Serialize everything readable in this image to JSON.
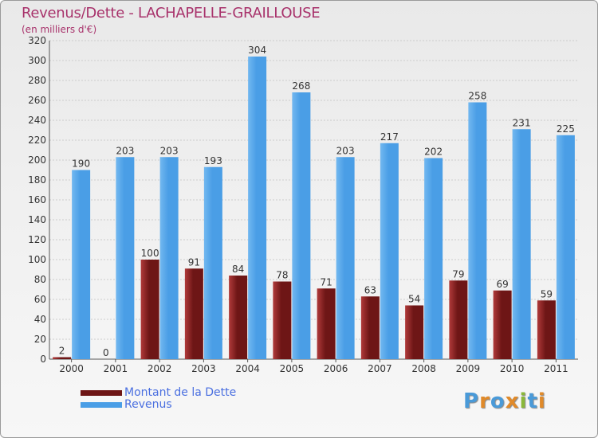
{
  "title": "Revenus/Dette - LACHAPELLE-GRAILLOUSE",
  "subtitle": "(en milliers d'€)",
  "logo": {
    "text": "Proxiti",
    "letters": [
      {
        "char": "P",
        "color": "#4a9ad8"
      },
      {
        "char": "r",
        "color": "#e08a2a"
      },
      {
        "char": "o",
        "color": "#4a9ad8"
      },
      {
        "char": "x",
        "color": "#e08a2a"
      },
      {
        "char": "i",
        "color": "#8ab83a"
      },
      {
        "char": "t",
        "color": "#4a9ad8"
      },
      {
        "char": "i",
        "color": "#e08a2a"
      }
    ]
  },
  "colors": {
    "dette": "#6e1616",
    "dette_light": "#b03a3a",
    "revenus": "#4a9ee6",
    "revenus_light": "#72b8f0",
    "grid": "#cccccc",
    "title": "#a8326b",
    "legend_text": "#4a6fe0"
  },
  "chart_data": {
    "type": "bar",
    "title": "Revenus/Dette - LACHAPELLE-GRAILLOUSE",
    "ylabel": "(en milliers d'€)",
    "xlabel": "",
    "ylim": [
      0,
      320
    ],
    "yticks": [
      0,
      20,
      40,
      60,
      80,
      100,
      120,
      140,
      160,
      180,
      200,
      220,
      240,
      260,
      280,
      300,
      320
    ],
    "categories": [
      "2000",
      "2001",
      "2002",
      "2003",
      "2004",
      "2005",
      "2006",
      "2007",
      "2008",
      "2009",
      "2010",
      "2011"
    ],
    "series": [
      {
        "name": "Montant de la Dette",
        "values": [
          2,
          0,
          100,
          91,
          84,
          78,
          71,
          63,
          54,
          79,
          69,
          59
        ]
      },
      {
        "name": "Revenus",
        "values": [
          190,
          203,
          203,
          193,
          304,
          268,
          203,
          217,
          202,
          258,
          231,
          225
        ]
      }
    ],
    "grid": true,
    "legend": "bottom-left"
  }
}
